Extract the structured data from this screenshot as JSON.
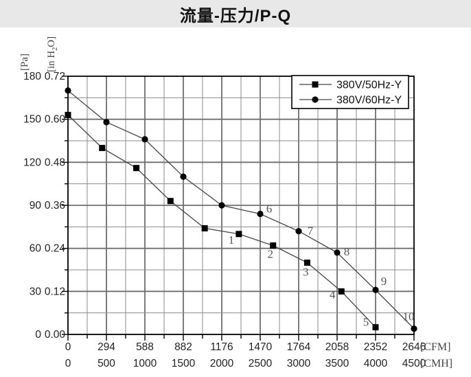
{
  "page": {
    "title": "流量-压力/P-Q"
  },
  "colors": {
    "title_band_bg": "#e8e8e8",
    "grid_minor": "#8a8a8a",
    "grid_major": "#6e6e6e",
    "axis": "#000000",
    "text": "#222222",
    "series_line": "#444444",
    "marker": "#000000",
    "point_label": "#555555",
    "legend_bg": "#ffffff"
  },
  "chart_data": {
    "type": "line",
    "title": "流量-压力/P-Q",
    "grid": {
      "x_divisions": 18,
      "y_divisions": 12,
      "grid_on": true
    },
    "legend_position": "top-right",
    "x_axis": {
      "range_cmh": [
        0,
        4500
      ],
      "primary": {
        "unit": "[CFM]",
        "ticks": [
          "0",
          "294",
          "588",
          "882",
          "1176",
          "1470",
          "1764",
          "2058",
          "2352",
          "2646"
        ]
      },
      "secondary": {
        "unit": "[CMH]",
        "ticks": [
          "0",
          "500",
          "1000",
          "1500",
          "2000",
          "2500",
          "3000",
          "3500",
          "4000",
          "4500"
        ]
      }
    },
    "y_axis": {
      "range_pa": [
        0,
        180
      ],
      "primary": {
        "unit": "[Pa]",
        "ticks": [
          "180",
          "150",
          "120",
          "90",
          "60",
          "30",
          "0"
        ]
      },
      "secondary": {
        "unit_parts": {
          "pre": "[in H",
          "sub": "2",
          "post": "O]"
        },
        "ticks": [
          "0.72",
          "0.60",
          "0.48",
          "0.36",
          "0.24",
          "0.12",
          "0.00"
        ]
      }
    },
    "series": [
      {
        "name": "380V/50Hz-Y",
        "marker": "square",
        "points": [
          {
            "cmh": 0,
            "pa": 153,
            "in_h2o": 0.61,
            "label": "",
            "ldx": 0,
            "ldy": 0
          },
          {
            "cmh": 444,
            "pa": 130,
            "in_h2o": 0.52,
            "label": "",
            "ldx": 0,
            "ldy": 0
          },
          {
            "cmh": 889,
            "pa": 116,
            "in_h2o": 0.46,
            "label": "",
            "ldx": 0,
            "ldy": 0
          },
          {
            "cmh": 1333,
            "pa": 93,
            "in_h2o": 0.37,
            "label": "",
            "ldx": 0,
            "ldy": 0
          },
          {
            "cmh": 1778,
            "pa": 74,
            "in_h2o": 0.3,
            "label": "",
            "ldx": 0,
            "ldy": 0
          },
          {
            "cmh": 2222,
            "pa": 70,
            "in_h2o": 0.28,
            "label": "1",
            "ldx": -11,
            "ldy": 14
          },
          {
            "cmh": 2667,
            "pa": 62,
            "in_h2o": 0.25,
            "label": "2",
            "ldx": -4,
            "ldy": 18
          },
          {
            "cmh": 3111,
            "pa": 50,
            "in_h2o": 0.2,
            "label": "3",
            "ldx": -2,
            "ldy": 19
          },
          {
            "cmh": 3556,
            "pa": 30,
            "in_h2o": 0.12,
            "label": "4",
            "ldx": -13,
            "ldy": 10
          },
          {
            "cmh": 4000,
            "pa": 5,
            "in_h2o": 0.02,
            "label": "5",
            "ldx": -14,
            "ldy": -2
          }
        ]
      },
      {
        "name": "380V/60Hz-Y",
        "marker": "circle",
        "points": [
          {
            "cmh": 0,
            "pa": 170,
            "in_h2o": 0.68,
            "label": "",
            "ldx": 0,
            "ldy": 0
          },
          {
            "cmh": 500,
            "pa": 148,
            "in_h2o": 0.59,
            "label": "",
            "ldx": 0,
            "ldy": 0
          },
          {
            "cmh": 1000,
            "pa": 136,
            "in_h2o": 0.54,
            "label": "",
            "ldx": 0,
            "ldy": 0
          },
          {
            "cmh": 1500,
            "pa": 110,
            "in_h2o": 0.44,
            "label": "",
            "ldx": 0,
            "ldy": 0
          },
          {
            "cmh": 2000,
            "pa": 90,
            "in_h2o": 0.36,
            "label": "",
            "ldx": 0,
            "ldy": 0
          },
          {
            "cmh": 2500,
            "pa": 84,
            "in_h2o": 0.34,
            "label": "6",
            "ldx": 13,
            "ldy": -2
          },
          {
            "cmh": 3000,
            "pa": 72,
            "in_h2o": 0.29,
            "label": "7",
            "ldx": 17,
            "ldy": 5
          },
          {
            "cmh": 3500,
            "pa": 57,
            "in_h2o": 0.23,
            "label": "8",
            "ldx": 14,
            "ldy": 4
          },
          {
            "cmh": 4000,
            "pa": 31,
            "in_h2o": 0.12,
            "label": "9",
            "ldx": 12,
            "ldy": -7
          },
          {
            "cmh": 4500,
            "pa": 4,
            "in_h2o": 0.02,
            "label": "10",
            "ldx": -8,
            "ldy": -12
          }
        ]
      }
    ]
  }
}
